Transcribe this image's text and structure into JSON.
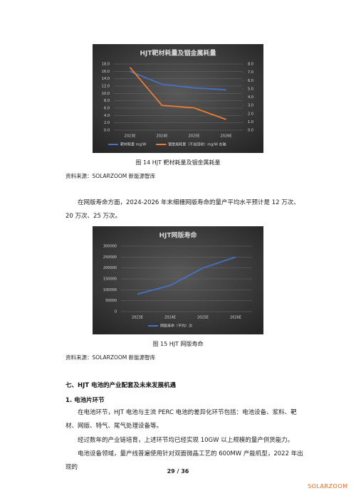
{
  "chart_data": [
    {
      "type": "line",
      "title": "HJT靶材耗量及铟金属耗量",
      "categories": [
        "2023E",
        "2024E",
        "2025E",
        "2026E"
      ],
      "series": [
        {
          "name": "靶材耗量 mg/W",
          "color": "#4472c4",
          "values": [
            16,
            12.5,
            11.5,
            11
          ]
        },
        {
          "name": "铟金属耗量（不含回收）mg/W 右轴",
          "color": "#ed7d31",
          "axis": "y2",
          "values": [
            7.6,
            3.0,
            2.7,
            1.3
          ]
        }
      ],
      "ylim": [
        0,
        18
      ],
      "yticks": [
        {
          "value": 0,
          "label": "0.0"
        },
        {
          "value": 2,
          "label": "2.0"
        },
        {
          "value": 4,
          "label": "4.0"
        },
        {
          "value": 6,
          "label": "6.0"
        },
        {
          "value": 8,
          "label": "8.0"
        },
        {
          "value": 10,
          "label": "10.0"
        },
        {
          "value": 12,
          "label": "12.0"
        },
        {
          "value": 14,
          "label": "14.0"
        },
        {
          "value": 16,
          "label": "16.0"
        },
        {
          "value": 18,
          "label": "18.0"
        }
      ],
      "y2lim": [
        0,
        8
      ],
      "y2ticks": [
        {
          "value": 0,
          "label": "0.0"
        },
        {
          "value": 1,
          "label": "1.0"
        },
        {
          "value": 2,
          "label": "2.0"
        },
        {
          "value": 3,
          "label": "3.0"
        },
        {
          "value": 4,
          "label": "4.0"
        },
        {
          "value": 5,
          "label": "5.0"
        },
        {
          "value": 6,
          "label": "6.0"
        },
        {
          "value": 7,
          "label": "7.0"
        },
        {
          "value": 8,
          "label": "8.0"
        }
      ],
      "grid": true
    },
    {
      "type": "line",
      "title": "HJT网版寿命",
      "categories": [
        "2023E",
        "2024E",
        "2025E",
        "2026E"
      ],
      "series": [
        {
          "name": "网版寿命（平均）次",
          "color": "#4472c4",
          "values": [
            80000,
            120000,
            200000,
            250000
          ]
        }
      ],
      "ylim": [
        0,
        300000
      ],
      "yticks": [
        0,
        50000,
        100000,
        150000,
        200000,
        250000,
        300000
      ],
      "grid": true
    }
  ],
  "document": {
    "caption1": "图 14   HJT 靶材耗量及铟金属耗量",
    "source1": "资料来源：SOLARZOOM 新能源智库",
    "paragraph1": "在网版寿命方面，2024-2026 年末细栅网版寿命的量产平均水平预计是 12 万次、20 万次、25 万次。",
    "caption2": "图 15   HJT 网版寿命",
    "source2": "资料来源：SOLARZOOM 新能源智库",
    "heading": "七、HJT 电池的产业配套及未来发展机遇",
    "subheading": "1.   电池片环节",
    "paragraph2": "在电池环节，HJT 电池与主流 PERC 电池的差异化环节包括：电池设备、浆料、靶材、网版、特气、尾气处理设备等。",
    "paragraph3": "经过数年的产业链培育，上述环节均已经实现 10GW 以上规模的量产供货能力。",
    "paragraph4": "电池设备领域，量产线普遍使用针对双面微晶工艺的 600MW 产能机型，2022 年出现的",
    "page_number": "29 / 36",
    "logo": "SOLARZOOM"
  }
}
